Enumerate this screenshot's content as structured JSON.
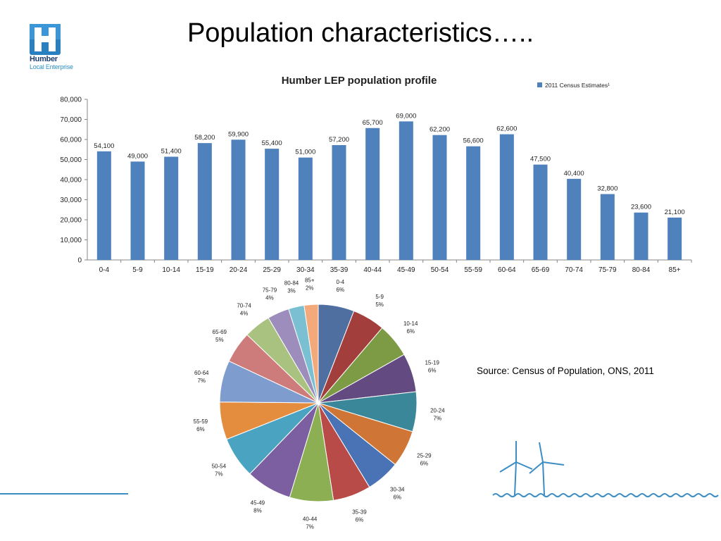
{
  "slide": {
    "title": "Population characteristics…..",
    "source": "Source: Census of Population, ONS, 2011",
    "logo": {
      "line1": "Humber",
      "line2": "Local Enterprise",
      "icon": "humber-h-logo"
    },
    "decoration": {
      "icon": "wind-turbines-icon",
      "accent_color": "#3b8dc4"
    }
  },
  "chart_data": [
    {
      "type": "bar",
      "title": "Humber LEP population profile",
      "legend": [
        "2011 Census Estimates¹"
      ],
      "legend_position": "top-right",
      "categories": [
        "0-4",
        "5-9",
        "10-14",
        "15-19",
        "20-24",
        "25-29",
        "30-34",
        "35-39",
        "40-44",
        "45-49",
        "50-54",
        "55-59",
        "60-64",
        "65-69",
        "70-74",
        "75-79",
        "80-84",
        "85+"
      ],
      "series": [
        {
          "name": "2011 Census Estimates¹",
          "values": [
            54100,
            49000,
            51400,
            58200,
            59900,
            55400,
            51000,
            57200,
            65700,
            69000,
            62200,
            56600,
            62600,
            47500,
            40400,
            32800,
            23600,
            21100
          ]
        }
      ],
      "data_labels": [
        "54,100",
        "49,000",
        "51,400",
        "58,200",
        "59,900",
        "55,400",
        "51,000",
        "57,200",
        "65,700",
        "69,000",
        "62,200",
        "56,600",
        "62,600",
        "47,500",
        "40,400",
        "32,800",
        "23,600",
        "21,100"
      ],
      "y_ticks": [
        "0",
        "10,000",
        "20,000",
        "30,000",
        "40,000",
        "50,000",
        "60,000",
        "70,000",
        "80,000"
      ],
      "ylim": [
        0,
        80000
      ],
      "bar_color": "#4f81bd",
      "grid": false
    },
    {
      "type": "pie",
      "categories": [
        "0-4",
        "5-9",
        "10-14",
        "15-19",
        "20-24",
        "25-29",
        "30-34",
        "35-39",
        "40-44",
        "45-49",
        "50-54",
        "55-59",
        "60-64",
        "65-69",
        "70-74",
        "75-79",
        "80-84",
        "85+"
      ],
      "values": [
        54100,
        49000,
        51400,
        58200,
        59900,
        55400,
        51000,
        57200,
        65700,
        69000,
        62200,
        56600,
        62600,
        47500,
        40400,
        32800,
        23600,
        21100
      ],
      "percent_labels": [
        "6%",
        "5%",
        "6%",
        "6%",
        "7%",
        "6%",
        "6%",
        "6%",
        "7%",
        "8%",
        "7%",
        "6%",
        "7%",
        "5%",
        "4%",
        "4%",
        "3%",
        "2%"
      ],
      "colors": [
        "#4f6fa0",
        "#a23f3c",
        "#7d9a45",
        "#634b82",
        "#3a879a",
        "#cf7637",
        "#4a73b5",
        "#b84a47",
        "#8caf53",
        "#7b5fa0",
        "#4ba3c2",
        "#e58d3e",
        "#7f9ccf",
        "#cd7c7b",
        "#aac27f",
        "#9c8dbc",
        "#7bbfd3",
        "#f4a97a"
      ],
      "legend": "none"
    }
  ]
}
